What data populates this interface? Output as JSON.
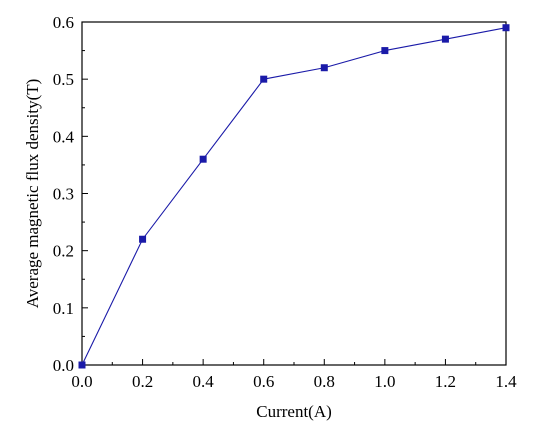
{
  "chart_data": {
    "type": "line",
    "xlabel": "Current(A)",
    "ylabel": "Average magnetic flux density(T)",
    "xlim": [
      0.0,
      1.4
    ],
    "ylim": [
      0.0,
      0.6
    ],
    "xticks": [
      "0.0",
      "0.2",
      "0.4",
      "0.6",
      "0.8",
      "1.0",
      "1.2",
      "1.4"
    ],
    "yticks": [
      "0.0",
      "0.1",
      "0.2",
      "0.3",
      "0.4",
      "0.5",
      "0.6"
    ],
    "grid": false,
    "legend": "none",
    "series": [
      {
        "x": [
          0.0,
          0.2,
          0.4,
          0.6,
          0.8,
          1.0,
          1.2,
          1.4
        ],
        "y": [
          0.0,
          0.22,
          0.36,
          0.5,
          0.52,
          0.55,
          0.57,
          0.59
        ],
        "color": "#1a1aa8",
        "marker": "square"
      }
    ]
  }
}
